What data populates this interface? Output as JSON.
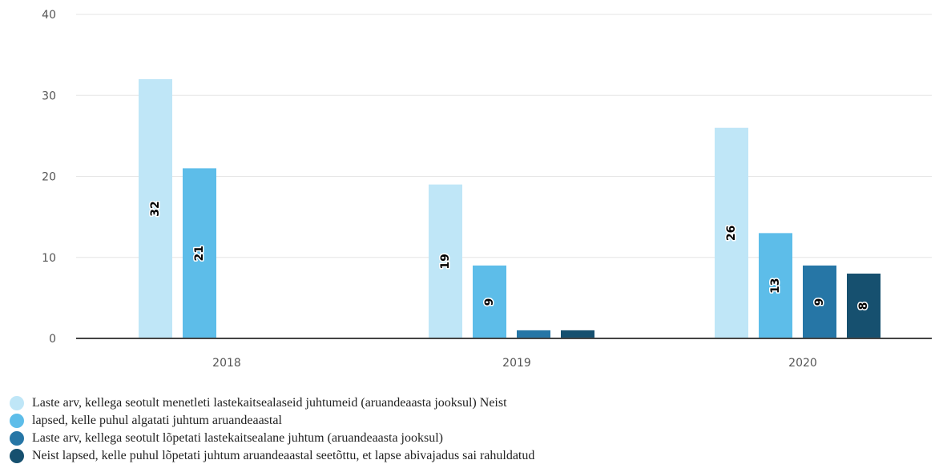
{
  "chart_data": {
    "type": "bar",
    "categories": [
      "2018",
      "2019",
      "2020"
    ],
    "series": [
      {
        "name": "Laste arv, kellega seotult menetleti lastekaitsealaseid juhtumeid (aruandeaasta jooksul) Neist",
        "color": "#bfe6f7",
        "values": [
          32,
          19,
          26
        ],
        "labels": [
          "32",
          "19",
          "26"
        ]
      },
      {
        "name": "lapsed, kelle puhul algatati juhtum aruandeaastal",
        "color": "#5dbde9",
        "values": [
          21,
          9,
          13
        ],
        "labels": [
          "21",
          "9",
          "13"
        ]
      },
      {
        "name": "Laste arv, kellega seotult lõpetati lastekaitsealane juhtum (aruandeaasta jooksul)",
        "color": "#2676a6",
        "values": [
          0,
          1,
          9
        ],
        "labels": [
          "",
          "",
          "9"
        ]
      },
      {
        "name": "Neist lapsed, kelle puhul lõpetati juhtum aruandeaastal seetõttu, et lapse abivajadus sai rahuldatud",
        "color": "#16506f",
        "values": [
          0,
          1,
          8
        ],
        "labels": [
          "",
          "",
          "8"
        ]
      }
    ],
    "yticks": [
      "0",
      "10",
      "20",
      "30",
      "40"
    ],
    "ylim": [
      0,
      40
    ],
    "grid": true,
    "legend_position": "bottom-left",
    "title": "",
    "xlabel": "",
    "ylabel": ""
  }
}
